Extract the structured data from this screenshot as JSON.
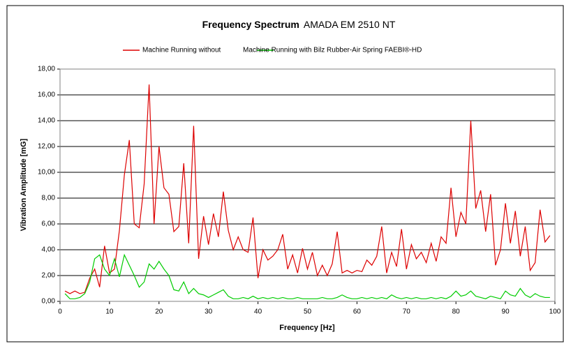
{
  "chart_data": {
    "type": "line",
    "title": "Frequency Spectrum",
    "subtitle": "AMADA EM 2510 NT",
    "x_label": "Frequency [Hz]",
    "y_label": "Vibration Amplitude  [mG]",
    "x": [
      1,
      2,
      3,
      4,
      5,
      6,
      7,
      8,
      9,
      10,
      11,
      12,
      13,
      14,
      15,
      16,
      17,
      18,
      19,
      20,
      21,
      22,
      23,
      24,
      25,
      26,
      27,
      28,
      29,
      30,
      31,
      32,
      33,
      34,
      35,
      36,
      37,
      38,
      39,
      40,
      41,
      42,
      43,
      44,
      45,
      46,
      47,
      48,
      49,
      50,
      51,
      52,
      53,
      54,
      55,
      56,
      57,
      58,
      59,
      60,
      61,
      62,
      63,
      64,
      65,
      66,
      67,
      68,
      69,
      70,
      71,
      72,
      73,
      74,
      75,
      76,
      77,
      78,
      79,
      80,
      81,
      82,
      83,
      84,
      85,
      86,
      87,
      88,
      89,
      90,
      91,
      92,
      93,
      94,
      95,
      96,
      97,
      98,
      99
    ],
    "series": [
      {
        "name": "Machine Running without",
        "color": "#dd0000",
        "values": [
          0.8,
          0.6,
          0.8,
          0.6,
          0.7,
          1.8,
          2.5,
          1.1,
          4.3,
          2.2,
          2.5,
          5.5,
          9.8,
          12.5,
          6.0,
          5.7,
          9.1,
          16.8,
          6.0,
          12.0,
          8.8,
          8.3,
          5.4,
          5.8,
          10.7,
          4.5,
          13.6,
          3.3,
          6.6,
          4.4,
          6.8,
          5.0,
          8.5,
          5.5,
          4.0,
          5.0,
          4.0,
          3.8,
          6.5,
          1.8,
          4.0,
          3.2,
          3.5,
          4.0,
          5.2,
          2.5,
          3.6,
          2.2,
          4.1,
          2.5,
          3.8,
          2.0,
          2.8,
          2.0,
          2.9,
          5.4,
          2.2,
          2.4,
          2.2,
          2.4,
          2.3,
          3.2,
          2.8,
          3.5,
          5.8,
          2.2,
          3.8,
          2.7,
          5.6,
          2.5,
          4.4,
          3.3,
          3.8,
          3.0,
          4.5,
          3.1,
          5.0,
          4.5,
          8.8,
          5.0,
          6.9,
          6.0,
          14.0,
          7.2,
          8.6,
          5.4,
          8.3,
          2.8,
          4.0,
          7.6,
          4.5,
          7.0,
          3.5,
          5.8,
          2.4,
          3.0,
          7.1,
          4.6,
          5.1
        ]
      },
      {
        "name": "Machine Running with Bilz Rubber-Air Spring FAEBI®-HD",
        "color": "#00cc00",
        "values": [
          0.6,
          0.2,
          0.2,
          0.3,
          0.6,
          1.5,
          3.3,
          3.6,
          2.5,
          2.0,
          3.3,
          1.9,
          3.6,
          2.8,
          2.0,
          1.1,
          1.5,
          2.9,
          2.5,
          3.1,
          2.5,
          2.0,
          0.9,
          0.8,
          1.5,
          0.6,
          1.0,
          0.6,
          0.5,
          0.3,
          0.5,
          0.7,
          0.9,
          0.4,
          0.2,
          0.2,
          0.3,
          0.2,
          0.4,
          0.2,
          0.3,
          0.2,
          0.3,
          0.2,
          0.3,
          0.2,
          0.2,
          0.3,
          0.2,
          0.2,
          0.2,
          0.2,
          0.3,
          0.2,
          0.2,
          0.3,
          0.5,
          0.3,
          0.2,
          0.2,
          0.3,
          0.2,
          0.3,
          0.2,
          0.3,
          0.2,
          0.5,
          0.3,
          0.2,
          0.3,
          0.2,
          0.3,
          0.2,
          0.2,
          0.3,
          0.2,
          0.3,
          0.2,
          0.4,
          0.8,
          0.4,
          0.5,
          0.8,
          0.4,
          0.3,
          0.2,
          0.4,
          0.3,
          0.2,
          0.8,
          0.5,
          0.4,
          1.0,
          0.5,
          0.3,
          0.6,
          0.4,
          0.3,
          0.3
        ]
      }
    ],
    "xlim": [
      0,
      100
    ],
    "xticks": [
      0,
      10,
      20,
      30,
      40,
      50,
      60,
      70,
      80,
      90,
      100
    ],
    "ylim": [
      0,
      18
    ],
    "yticks": [
      {
        "value": 0,
        "label": "0,00"
      },
      {
        "value": 2,
        "label": "2,00"
      },
      {
        "value": 4,
        "label": "4,00"
      },
      {
        "value": 6,
        "label": "6,00"
      },
      {
        "value": 8,
        "label": "8,00"
      },
      {
        "value": 10,
        "label": "10,00"
      },
      {
        "value": 12,
        "label": "12,00"
      },
      {
        "value": 14,
        "label": "14,00"
      },
      {
        "value": 16,
        "label": "16,00"
      },
      {
        "value": 18,
        "label": "18,00"
      }
    ],
    "grid": true,
    "legend": "top"
  }
}
